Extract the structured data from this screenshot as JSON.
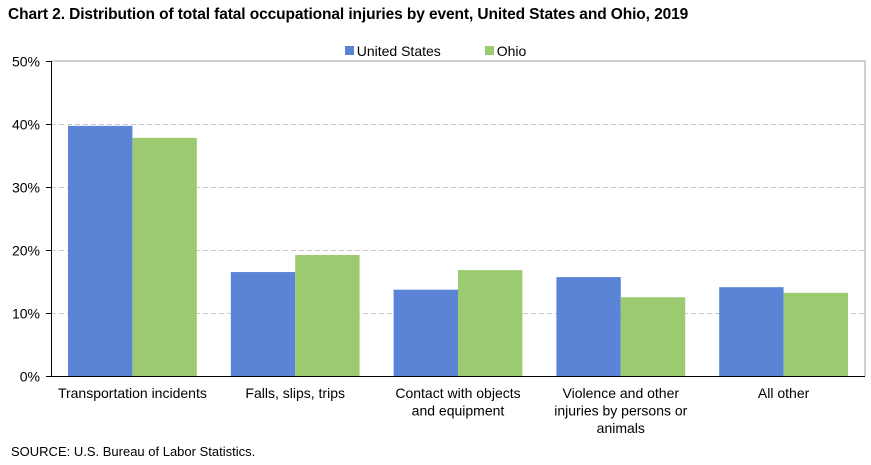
{
  "title": "Chart 2. Distribution of total fatal occupational injuries by event, United States and Ohio, 2019",
  "source": "SOURCE: U.S. Bureau of Labor Statistics.",
  "chart_data": {
    "type": "bar",
    "title": "Chart 2. Distribution of total fatal occupational injuries by event, United States and Ohio, 2019",
    "xlabel": "",
    "ylabel": "",
    "ylim": [
      0,
      50
    ],
    "yticks": [
      0,
      10,
      20,
      30,
      40,
      50
    ],
    "ytick_labels": [
      "0%",
      "10%",
      "20%",
      "30%",
      "40%",
      "50%"
    ],
    "grid": true,
    "legend_position": "top-center",
    "categories": [
      [
        "Transportation incidents"
      ],
      [
        "Falls, slips, trips"
      ],
      [
        "Contact with objects",
        "and equipment"
      ],
      [
        "Violence and other",
        "injuries by persons or",
        "animals"
      ],
      [
        "All other"
      ]
    ],
    "series": [
      {
        "name": "United States",
        "color": "#5B84D6",
        "values": [
          39.7,
          16.5,
          13.7,
          15.7,
          14.1
        ]
      },
      {
        "name": "Ohio",
        "color": "#9BCA70",
        "values": [
          37.8,
          19.2,
          16.8,
          12.5,
          13.2
        ]
      }
    ]
  }
}
